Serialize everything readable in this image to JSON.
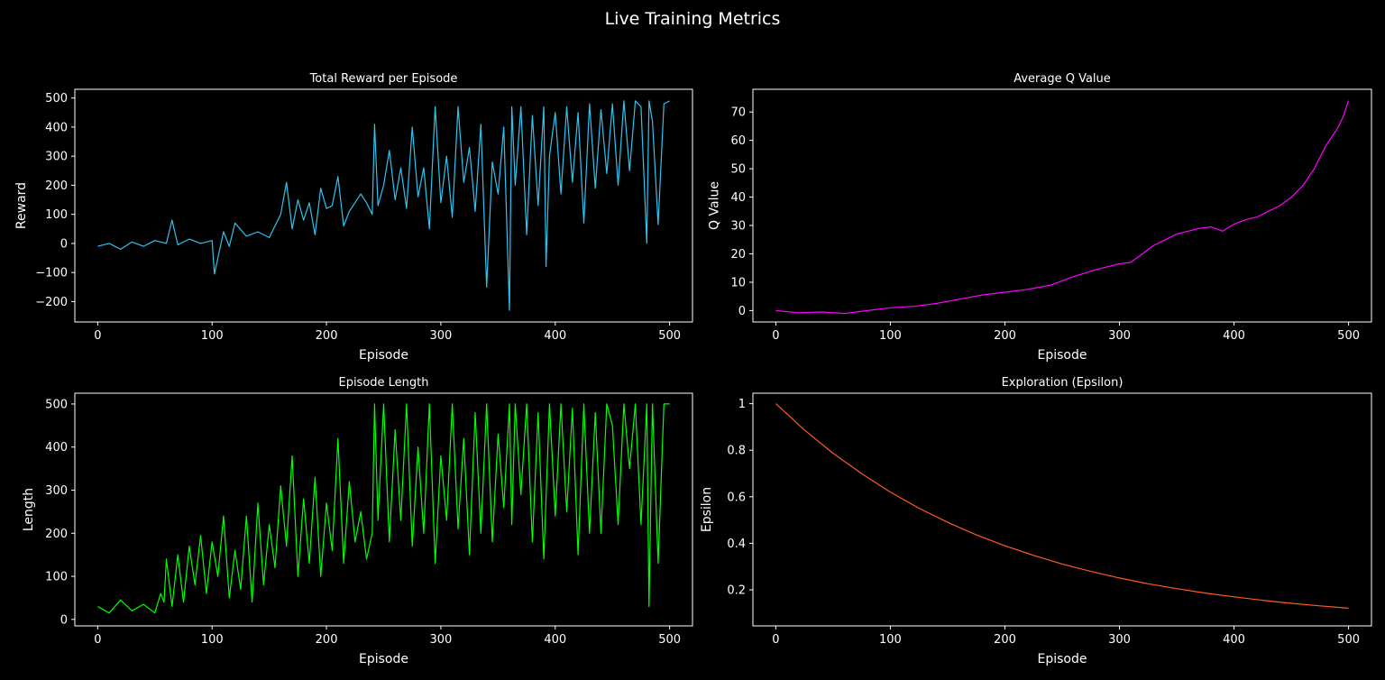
{
  "figure": {
    "suptitle": "Live Training Metrics",
    "background": "#000000"
  },
  "chart_data": [
    {
      "type": "line",
      "title": "Total Reward per Episode",
      "xlabel": "Episode",
      "ylabel": "Reward",
      "xlim": [
        -20,
        520
      ],
      "ylim": [
        -270,
        530
      ],
      "xticks": [
        0,
        100,
        200,
        300,
        400,
        500
      ],
      "yticks": [
        -200,
        -100,
        0,
        100,
        200,
        300,
        400,
        500
      ],
      "color": "#2ec4f0",
      "grid": false,
      "series": [
        {
          "x": [
            0,
            10,
            20,
            30,
            40,
            50,
            60,
            65,
            70,
            80,
            90,
            100,
            102,
            110,
            115,
            120,
            130,
            140,
            150,
            160,
            165,
            170,
            175,
            180,
            185,
            190,
            195,
            200,
            205,
            210,
            215,
            220,
            230,
            235,
            240,
            242,
            245,
            250,
            255,
            260,
            265,
            270,
            275,
            280,
            285,
            290,
            295,
            300,
            305,
            310,
            315,
            320,
            325,
            330,
            335,
            340,
            345,
            350,
            355,
            360,
            362,
            365,
            370,
            375,
            380,
            385,
            390,
            392,
            395,
            400,
            405,
            410,
            415,
            420,
            425,
            430,
            435,
            440,
            445,
            450,
            455,
            460,
            465,
            470,
            475,
            480,
            482,
            485,
            490,
            495,
            500
          ],
          "y": [
            -10,
            0,
            -20,
            5,
            -10,
            10,
            0,
            80,
            -5,
            15,
            0,
            10,
            -105,
            40,
            -10,
            70,
            25,
            40,
            20,
            100,
            210,
            50,
            150,
            80,
            140,
            30,
            190,
            120,
            130,
            230,
            60,
            110,
            170,
            140,
            100,
            410,
            130,
            200,
            320,
            150,
            260,
            120,
            400,
            160,
            260,
            50,
            470,
            140,
            300,
            90,
            470,
            210,
            330,
            110,
            410,
            -150,
            280,
            170,
            400,
            -230,
            470,
            200,
            470,
            30,
            440,
            130,
            470,
            -80,
            300,
            450,
            170,
            470,
            210,
            450,
            70,
            480,
            190,
            460,
            240,
            480,
            200,
            490,
            250,
            490,
            470,
            0,
            490,
            420,
            65,
            480,
            490
          ]
        }
      ]
    },
    {
      "type": "line",
      "title": "Average Q Value",
      "xlabel": "Episode",
      "ylabel": "Q Value",
      "xlim": [
        -20,
        520
      ],
      "ylim": [
        -4,
        78
      ],
      "xticks": [
        0,
        100,
        200,
        300,
        400,
        500
      ],
      "yticks": [
        0,
        10,
        20,
        30,
        40,
        50,
        60,
        70
      ],
      "color": "#ff00ff",
      "grid": false,
      "series": [
        {
          "x": [
            0,
            20,
            40,
            60,
            80,
            100,
            120,
            140,
            160,
            180,
            200,
            220,
            240,
            260,
            280,
            300,
            310,
            320,
            330,
            340,
            350,
            360,
            370,
            380,
            390,
            400,
            410,
            420,
            430,
            440,
            450,
            460,
            470,
            480,
            490,
            495,
            500
          ],
          "y": [
            0,
            -0.8,
            -0.5,
            -1,
            0,
            1,
            1.5,
            2.5,
            4,
            5.5,
            6.5,
            7.5,
            9,
            12,
            14.5,
            16.5,
            17,
            20,
            23,
            25,
            27,
            28,
            29,
            29.5,
            28,
            30.5,
            32,
            33,
            35,
            37,
            40,
            44,
            50,
            58,
            64,
            68,
            74
          ]
        }
      ]
    },
    {
      "type": "line",
      "title": "Episode Length",
      "xlabel": "Episode",
      "ylabel": "Length",
      "xlim": [
        -20,
        520
      ],
      "ylim": [
        -15,
        525
      ],
      "xticks": [
        0,
        100,
        200,
        300,
        400,
        500
      ],
      "yticks": [
        0,
        100,
        200,
        300,
        400,
        500
      ],
      "color": "#00ff00",
      "grid": false,
      "series": [
        {
          "x": [
            0,
            10,
            20,
            30,
            40,
            50,
            55,
            58,
            60,
            65,
            70,
            75,
            80,
            85,
            90,
            95,
            100,
            105,
            110,
            115,
            120,
            125,
            130,
            135,
            140,
            145,
            150,
            155,
            160,
            165,
            170,
            175,
            180,
            185,
            190,
            195,
            200,
            205,
            210,
            215,
            220,
            225,
            230,
            235,
            240,
            242,
            245,
            250,
            255,
            260,
            265,
            270,
            275,
            280,
            285,
            290,
            295,
            300,
            305,
            310,
            315,
            320,
            325,
            330,
            335,
            340,
            345,
            350,
            355,
            360,
            362,
            365,
            370,
            375,
            380,
            385,
            390,
            395,
            400,
            405,
            410,
            415,
            420,
            425,
            430,
            435,
            440,
            445,
            450,
            455,
            460,
            465,
            470,
            475,
            480,
            482,
            485,
            490,
            495,
            500
          ],
          "y": [
            30,
            15,
            45,
            20,
            35,
            15,
            60,
            40,
            140,
            30,
            150,
            40,
            170,
            80,
            195,
            60,
            180,
            100,
            240,
            50,
            160,
            70,
            240,
            40,
            270,
            80,
            220,
            120,
            310,
            170,
            380,
            100,
            280,
            130,
            330,
            100,
            270,
            160,
            420,
            130,
            320,
            180,
            250,
            140,
            200,
            500,
            230,
            500,
            180,
            440,
            230,
            500,
            170,
            400,
            200,
            500,
            130,
            380,
            230,
            500,
            210,
            420,
            150,
            480,
            200,
            500,
            180,
            430,
            260,
            500,
            220,
            500,
            290,
            500,
            180,
            480,
            140,
            500,
            240,
            500,
            250,
            490,
            150,
            500,
            200,
            480,
            200,
            500,
            450,
            220,
            500,
            350,
            500,
            220,
            500,
            30,
            500,
            130,
            500,
            500
          ]
        }
      ]
    },
    {
      "type": "line",
      "title": "Exploration (Epsilon)",
      "xlabel": "Episode",
      "ylabel": "Epsilon",
      "xlim": [
        -20,
        520
      ],
      "ylim": [
        0.045,
        1.045
      ],
      "xticks": [
        0,
        100,
        200,
        300,
        400,
        500
      ],
      "yticks": [
        0.2,
        0.4,
        0.6,
        0.8,
        1.0
      ],
      "color": "#ff5a1f",
      "grid": false,
      "series": [
        {
          "x": [
            0,
            25,
            50,
            75,
            100,
            125,
            150,
            175,
            200,
            225,
            250,
            275,
            300,
            325,
            350,
            375,
            400,
            425,
            450,
            475,
            500
          ],
          "y": [
            1.0,
            0.887,
            0.787,
            0.699,
            0.62,
            0.551,
            0.49,
            0.436,
            0.389,
            0.348,
            0.311,
            0.279,
            0.251,
            0.226,
            0.205,
            0.186,
            0.17,
            0.155,
            0.142,
            0.131,
            0.121
          ]
        }
      ]
    }
  ]
}
